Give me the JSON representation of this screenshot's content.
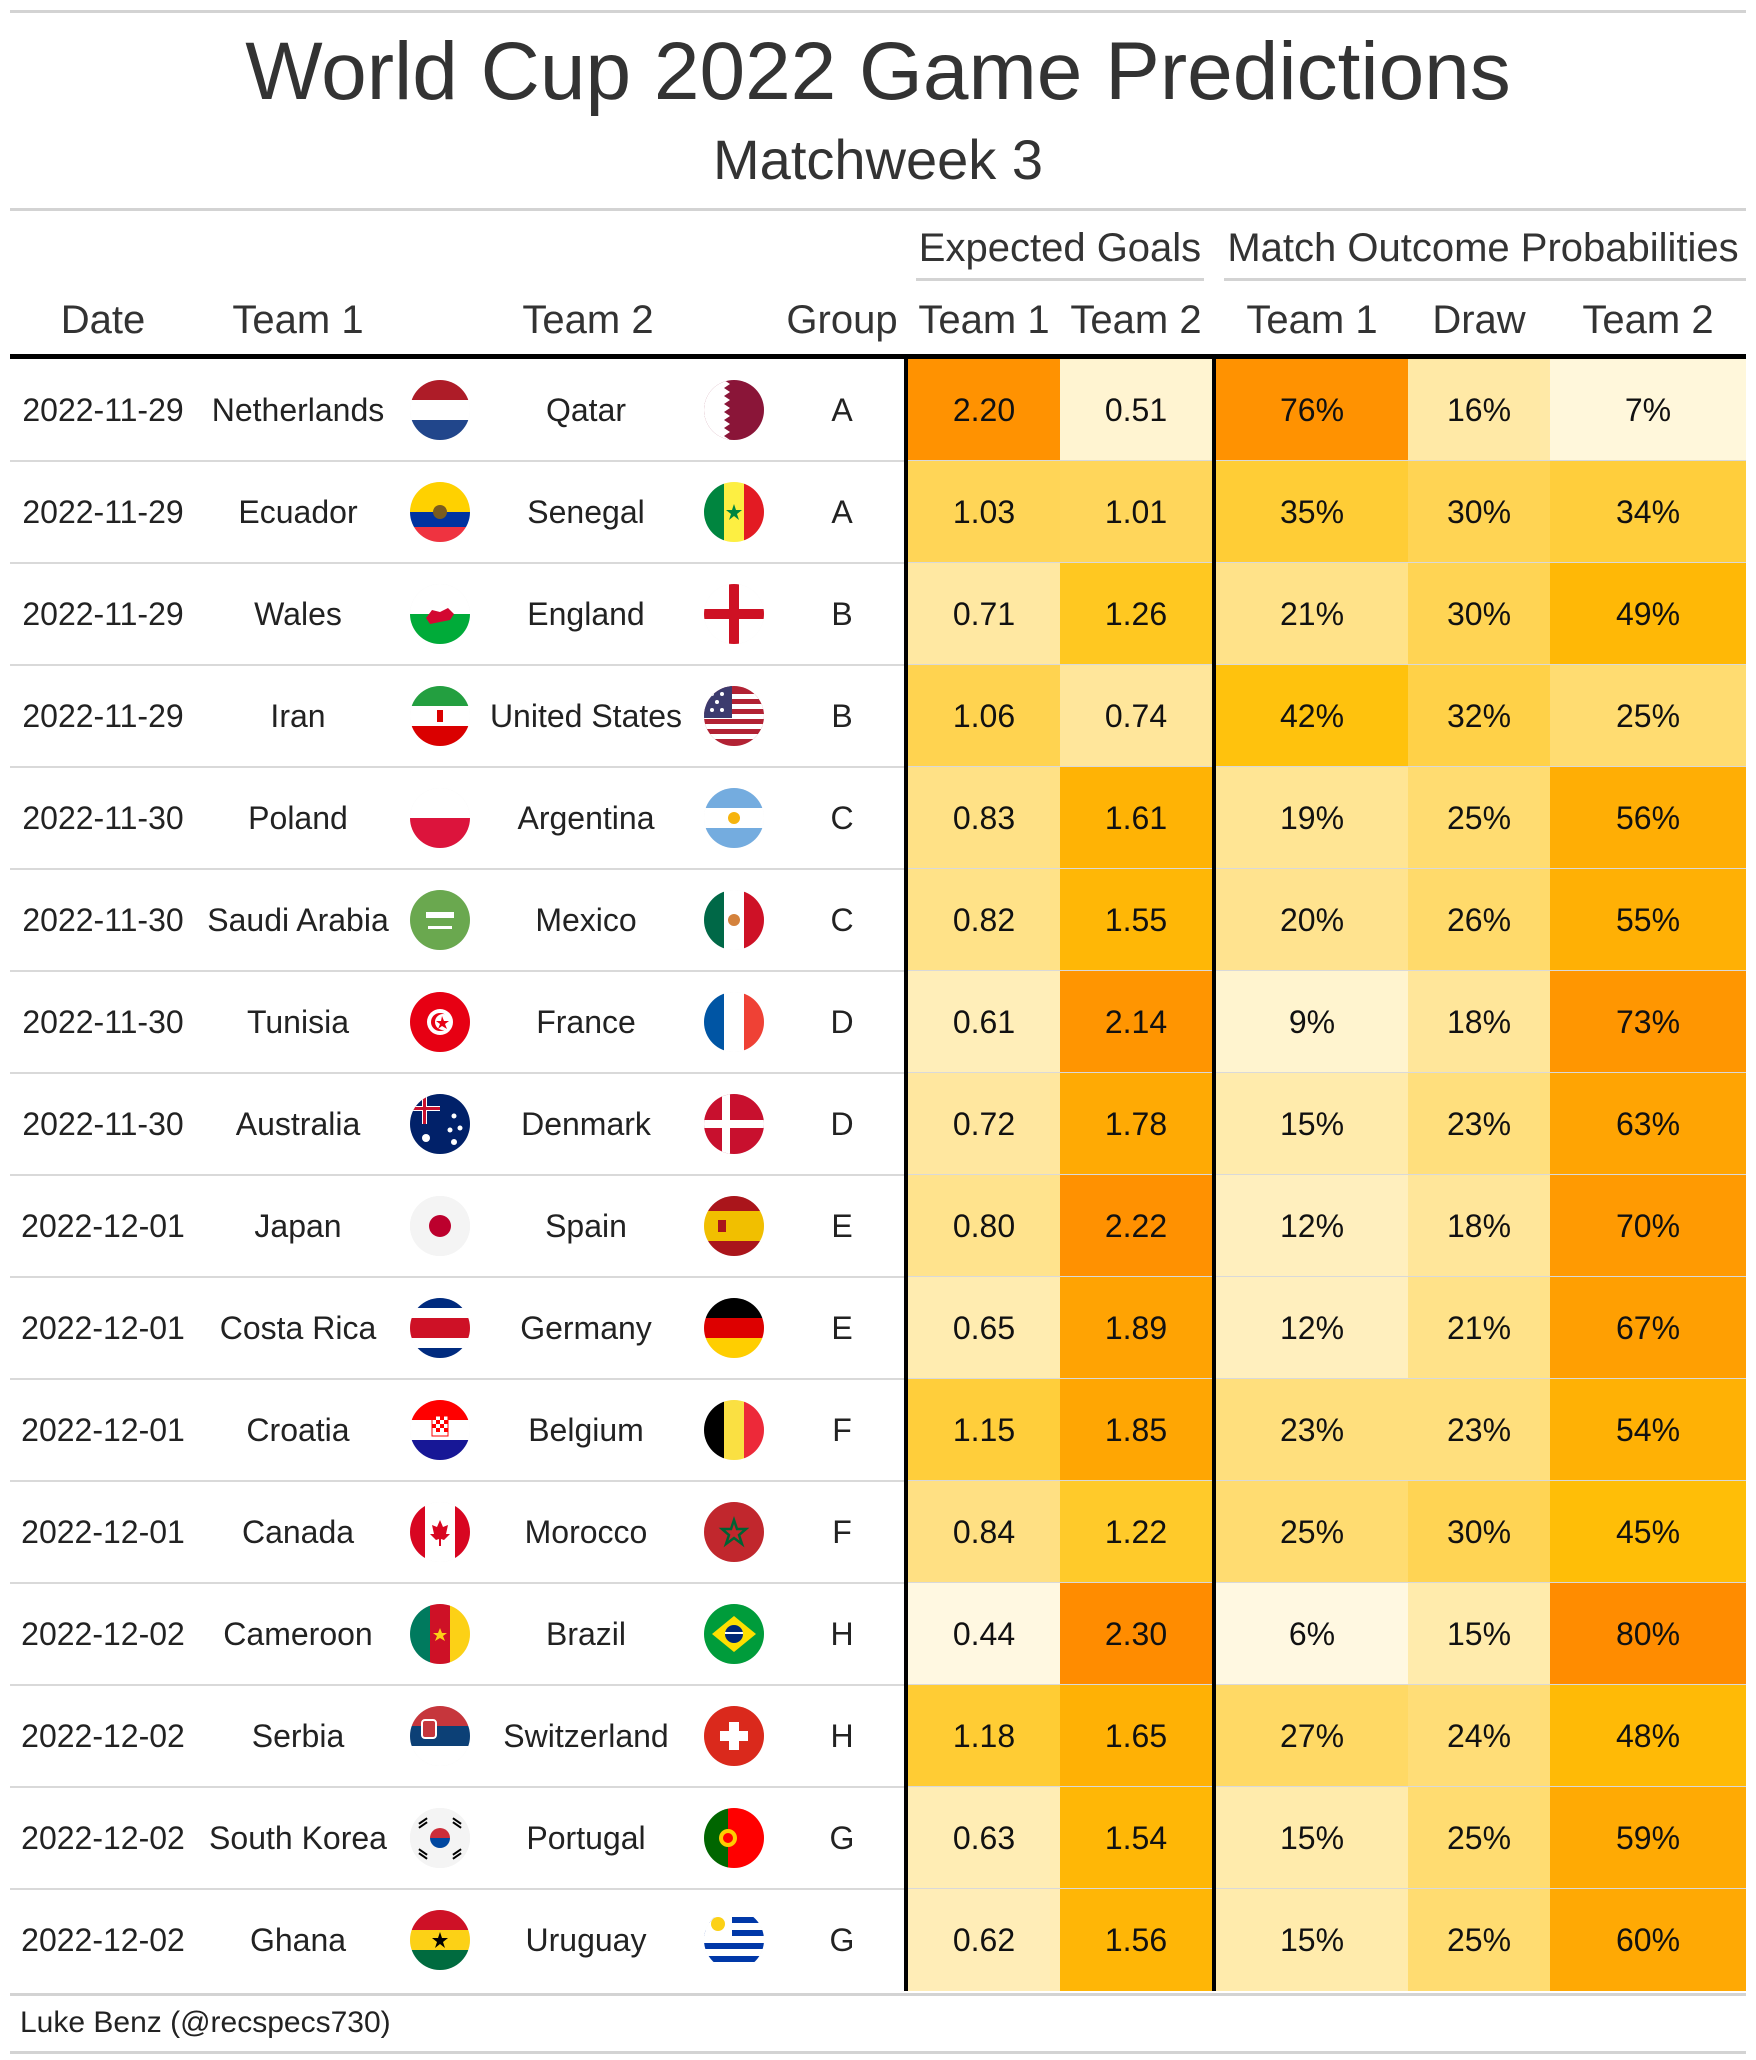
{
  "title": "World Cup 2022 Game Predictions",
  "subtitle": "Matchweek 3",
  "source": "Luke Benz (@recspecs730)",
  "spanners": {
    "expected_goals": "Expected Goals",
    "outcome": "Match Outcome Probabilities"
  },
  "columns": {
    "date": "Date",
    "team1": "Team 1",
    "team2": "Team 2",
    "group": "Group",
    "xg1": "Team 1",
    "xg2": "Team 2",
    "p1": "Team 1",
    "pdraw": "Draw",
    "p2": "Team 2"
  },
  "colors": {
    "heat_low": "#fff8e1",
    "heat_mid": "#ffc107",
    "heat_high": "#ff8c00",
    "rule": "#d3d3d3",
    "text": "#333333"
  },
  "chart_data": {
    "type": "table",
    "rows": [
      {
        "date": "2022-11-29",
        "team1": "Netherlands",
        "flag1": "netherlands-flag-icon",
        "team2": "Qatar",
        "flag2": "qatar-flag-icon",
        "group": "A",
        "xg1": "2.20",
        "xg2": "0.51",
        "p1": "76%",
        "pdraw": "16%",
        "p2": "7%"
      },
      {
        "date": "2022-11-29",
        "team1": "Ecuador",
        "flag1": "ecuador-flag-icon",
        "team2": "Senegal",
        "flag2": "senegal-flag-icon",
        "group": "A",
        "xg1": "1.03",
        "xg2": "1.01",
        "p1": "35%",
        "pdraw": "30%",
        "p2": "34%"
      },
      {
        "date": "2022-11-29",
        "team1": "Wales",
        "flag1": "wales-flag-icon",
        "team2": "England",
        "flag2": "england-flag-icon",
        "group": "B",
        "xg1": "0.71",
        "xg2": "1.26",
        "p1": "21%",
        "pdraw": "30%",
        "p2": "49%"
      },
      {
        "date": "2022-11-29",
        "team1": "Iran",
        "flag1": "iran-flag-icon",
        "team2": "United States",
        "flag2": "united-states-flag-icon",
        "group": "B",
        "xg1": "1.06",
        "xg2": "0.74",
        "p1": "42%",
        "pdraw": "32%",
        "p2": "25%"
      },
      {
        "date": "2022-11-30",
        "team1": "Poland",
        "flag1": "poland-flag-icon",
        "team2": "Argentina",
        "flag2": "argentina-flag-icon",
        "group": "C",
        "xg1": "0.83",
        "xg2": "1.61",
        "p1": "19%",
        "pdraw": "25%",
        "p2": "56%"
      },
      {
        "date": "2022-11-30",
        "team1": "Saudi Arabia",
        "flag1": "saudi-arabia-flag-icon",
        "team2": "Mexico",
        "flag2": "mexico-flag-icon",
        "group": "C",
        "xg1": "0.82",
        "xg2": "1.55",
        "p1": "20%",
        "pdraw": "26%",
        "p2": "55%"
      },
      {
        "date": "2022-11-30",
        "team1": "Tunisia",
        "flag1": "tunisia-flag-icon",
        "team2": "France",
        "flag2": "france-flag-icon",
        "group": "D",
        "xg1": "0.61",
        "xg2": "2.14",
        "p1": "9%",
        "pdraw": "18%",
        "p2": "73%"
      },
      {
        "date": "2022-11-30",
        "team1": "Australia",
        "flag1": "australia-flag-icon",
        "team2": "Denmark",
        "flag2": "denmark-flag-icon",
        "group": "D",
        "xg1": "0.72",
        "xg2": "1.78",
        "p1": "15%",
        "pdraw": "23%",
        "p2": "63%"
      },
      {
        "date": "2022-12-01",
        "team1": "Japan",
        "flag1": "japan-flag-icon",
        "team2": "Spain",
        "flag2": "spain-flag-icon",
        "group": "E",
        "xg1": "0.80",
        "xg2": "2.22",
        "p1": "12%",
        "pdraw": "18%",
        "p2": "70%"
      },
      {
        "date": "2022-12-01",
        "team1": "Costa Rica",
        "flag1": "costa-rica-flag-icon",
        "team2": "Germany",
        "flag2": "germany-flag-icon",
        "group": "E",
        "xg1": "0.65",
        "xg2": "1.89",
        "p1": "12%",
        "pdraw": "21%",
        "p2": "67%"
      },
      {
        "date": "2022-12-01",
        "team1": "Croatia",
        "flag1": "croatia-flag-icon",
        "team2": "Belgium",
        "flag2": "belgium-flag-icon",
        "group": "F",
        "xg1": "1.15",
        "xg2": "1.85",
        "p1": "23%",
        "pdraw": "23%",
        "p2": "54%"
      },
      {
        "date": "2022-12-01",
        "team1": "Canada",
        "flag1": "canada-flag-icon",
        "team2": "Morocco",
        "flag2": "morocco-flag-icon",
        "group": "F",
        "xg1": "0.84",
        "xg2": "1.22",
        "p1": "25%",
        "pdraw": "30%",
        "p2": "45%"
      },
      {
        "date": "2022-12-02",
        "team1": "Cameroon",
        "flag1": "cameroon-flag-icon",
        "team2": "Brazil",
        "flag2": "brazil-flag-icon",
        "group": "H",
        "xg1": "0.44",
        "xg2": "2.30",
        "p1": "6%",
        "pdraw": "15%",
        "p2": "80%"
      },
      {
        "date": "2022-12-02",
        "team1": "Serbia",
        "flag1": "serbia-flag-icon",
        "team2": "Switzerland",
        "flag2": "switzerland-flag-icon",
        "group": "H",
        "xg1": "1.18",
        "xg2": "1.65",
        "p1": "27%",
        "pdraw": "24%",
        "p2": "48%"
      },
      {
        "date": "2022-12-02",
        "team1": "South Korea",
        "flag1": "south-korea-flag-icon",
        "team2": "Portugal",
        "flag2": "portugal-flag-icon",
        "group": "G",
        "xg1": "0.63",
        "xg2": "1.54",
        "p1": "15%",
        "pdraw": "25%",
        "p2": "59%"
      },
      {
        "date": "2022-12-02",
        "team1": "Ghana",
        "flag1": "ghana-flag-icon",
        "team2": "Uruguay",
        "flag2": "uruguay-flag-icon",
        "group": "G",
        "xg1": "0.62",
        "xg2": "1.56",
        "p1": "15%",
        "pdraw": "25%",
        "p2": "60%"
      }
    ]
  }
}
